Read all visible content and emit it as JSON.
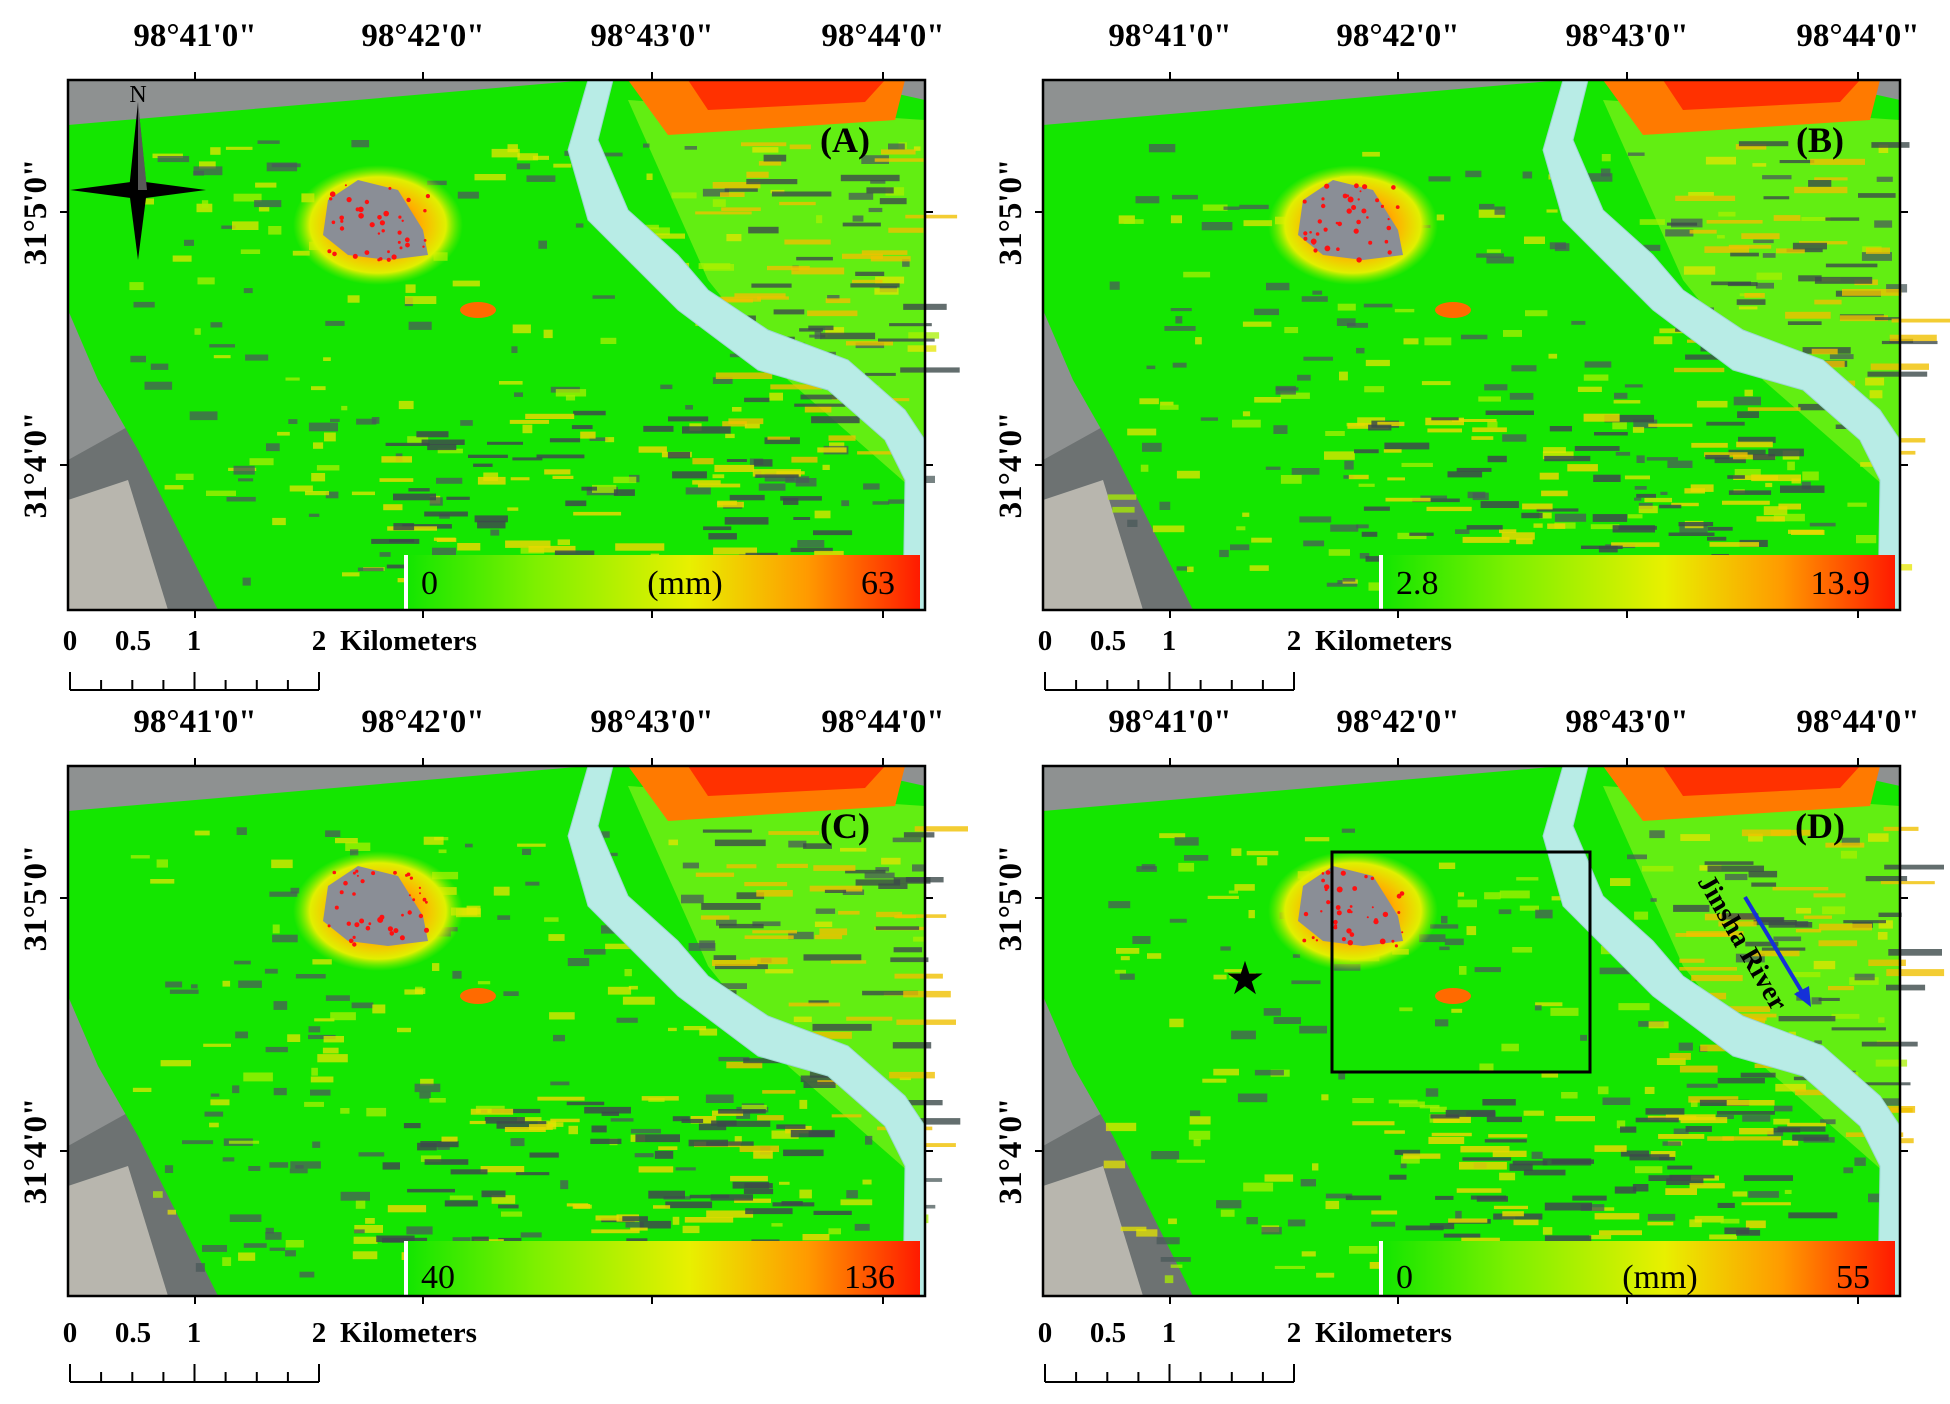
{
  "figure": {
    "lon_ticks": [
      "98°41'0\"",
      "98°42'0\"",
      "98°43'0\"",
      "98°44'0\""
    ],
    "lat_ticks": [
      "31°5'0\"",
      "31°4'0\""
    ],
    "scalebar": {
      "labels": [
        "0",
        "0.5",
        "1",
        "2"
      ],
      "unit": "Kilometers"
    },
    "north_label": "N",
    "colors": {
      "low": "#14e600",
      "mid": "#e8f000",
      "high": "#ff1a00",
      "river": "#b8ece6",
      "shadow": "#4a5a5a"
    }
  },
  "panels": [
    {
      "letter": "(A)",
      "cbar": {
        "min": "0",
        "max": "63",
        "unit": "(mm)"
      }
    },
    {
      "letter": "(B)",
      "cbar": {
        "min": "2.8",
        "max": "13.9",
        "unit": ""
      }
    },
    {
      "letter": "(C)",
      "cbar": {
        "min": "40",
        "max": "136",
        "unit": ""
      }
    },
    {
      "letter": "(D)",
      "cbar": {
        "min": "0",
        "max": "55",
        "unit": "(mm)"
      },
      "river_label": "Jinsha River"
    }
  ]
}
